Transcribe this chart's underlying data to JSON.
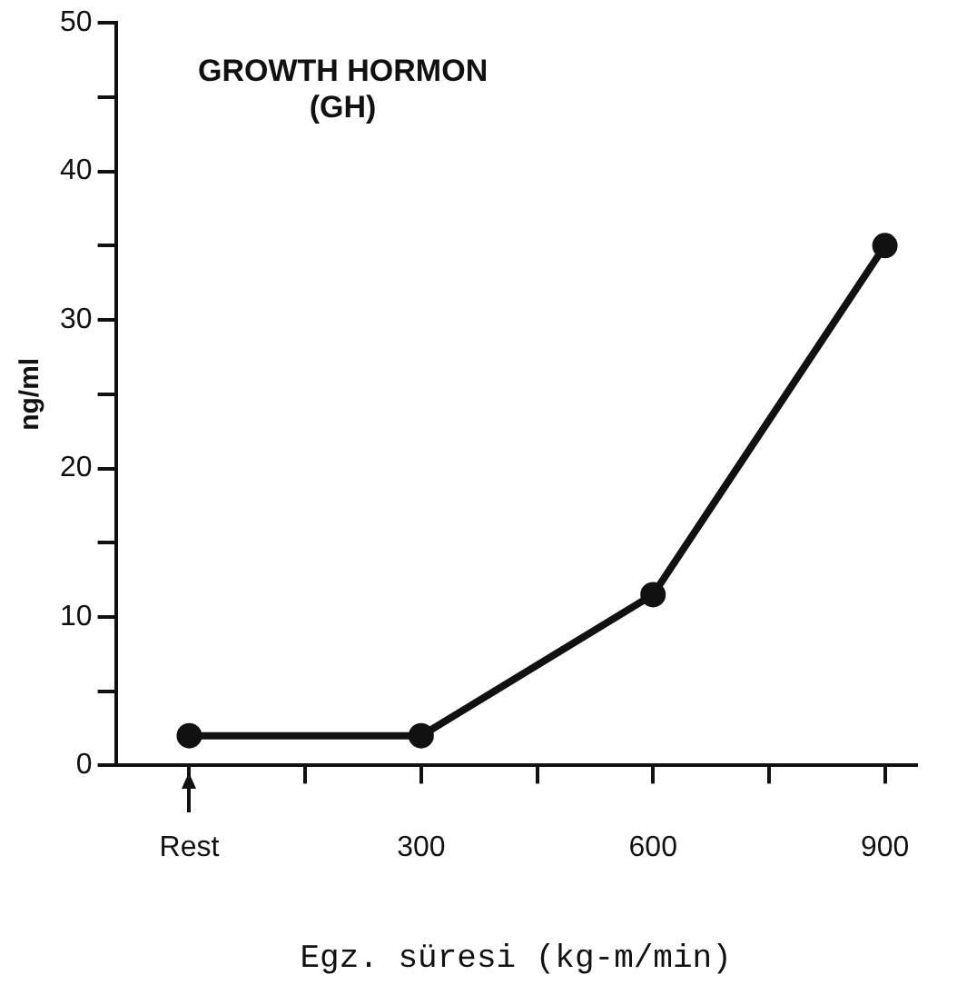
{
  "chart_data": {
    "type": "line",
    "title": "GROWTH HORMON",
    "subtitle": "(GH)",
    "xlabel": "Egz. süresi (kg-m/min)",
    "ylabel": "ng/ml",
    "x": [
      0,
      300,
      600,
      900
    ],
    "series": [
      {
        "color": "#111111",
        "values": [
          2,
          2,
          11.5,
          35
        ]
      }
    ],
    "xlim": [
      -95,
      940
    ],
    "xticks": [
      {
        "value": 0,
        "label": "Rest"
      },
      {
        "value": 150,
        "label": null
      },
      300,
      {
        "value": 450,
        "label": null
      },
      600,
      {
        "value": 750,
        "label": null
      },
      900
    ],
    "ylim": [
      0,
      50
    ],
    "yticks": [
      0,
      {
        "value": 5,
        "label": null
      },
      10,
      {
        "value": 15,
        "label": null
      },
      20,
      {
        "value": 25,
        "label": null
      },
      30,
      {
        "value": 35,
        "label": null
      },
      40,
      {
        "value": 45,
        "label": null
      },
      50
    ],
    "grid": false,
    "legend": false,
    "marker": "circle",
    "line_style": "solid"
  }
}
